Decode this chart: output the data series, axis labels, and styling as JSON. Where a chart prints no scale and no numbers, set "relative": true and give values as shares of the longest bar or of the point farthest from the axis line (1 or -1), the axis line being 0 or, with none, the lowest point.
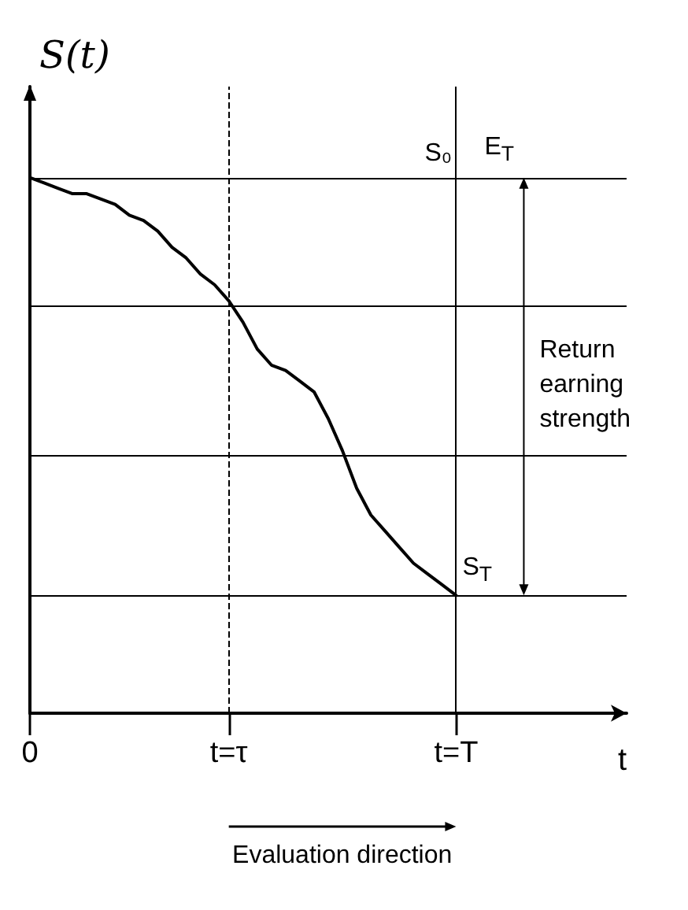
{
  "chart_data": {
    "type": "line",
    "relative": true,
    "ylabel": "S(t)",
    "xlabel": "t",
    "categories": [
      "0",
      null,
      null,
      null,
      null,
      null,
      null,
      null,
      null,
      null,
      null,
      null,
      null,
      null,
      "t=τ",
      null,
      null,
      null,
      null,
      null,
      null,
      null,
      null,
      null,
      null,
      null,
      null,
      null,
      null,
      null,
      "t=T",
      null,
      null,
      null,
      null,
      null,
      null,
      null,
      null,
      null,
      null,
      null,
      null
    ],
    "series": [
      {
        "color": "#000000",
        "values": [
          1,
          0.99,
          0.98,
          0.97,
          0.97,
          0.96,
          0.95,
          0.93,
          0.92,
          0.9,
          0.87,
          0.85,
          0.82,
          0.8,
          0.77,
          0.73,
          0.68,
          0.65,
          0.64,
          0.62,
          0.6,
          0.55,
          0.49,
          0.42,
          0.37,
          0.34,
          0.31,
          0.28,
          0.26,
          0.24,
          0.22,
          null,
          null,
          null,
          null,
          null,
          null,
          null,
          null,
          null,
          null,
          null,
          null
        ]
      }
    ],
    "tick_labels": "x",
    "grid": false,
    "marker": "none",
    "line_style": "solid",
    "ref_lines": [
      {
        "axis": "y",
        "value": 1,
        "color": "#000000"
      },
      {
        "axis": "y",
        "value": 0.76,
        "color": "#000000"
      },
      {
        "axis": "y",
        "value": 0.48,
        "color": "#000000"
      },
      {
        "axis": "y",
        "value": 0.22,
        "color": "#000000"
      },
      {
        "axis": "x",
        "value": "t=τ",
        "color": "#000000",
        "line_style": "dashed"
      },
      {
        "axis": "x",
        "value": "t=T",
        "color": "#000000"
      }
    ],
    "annotations": [
      {
        "text": "S₀",
        "x": "t=T",
        "y": 1
      },
      "E$_{T}$",
      "Return earning strength",
      {
        "text": "S$_{T}$",
        "x": "t=T",
        "y": 0.22
      },
      "Evaluation direction"
    ]
  }
}
